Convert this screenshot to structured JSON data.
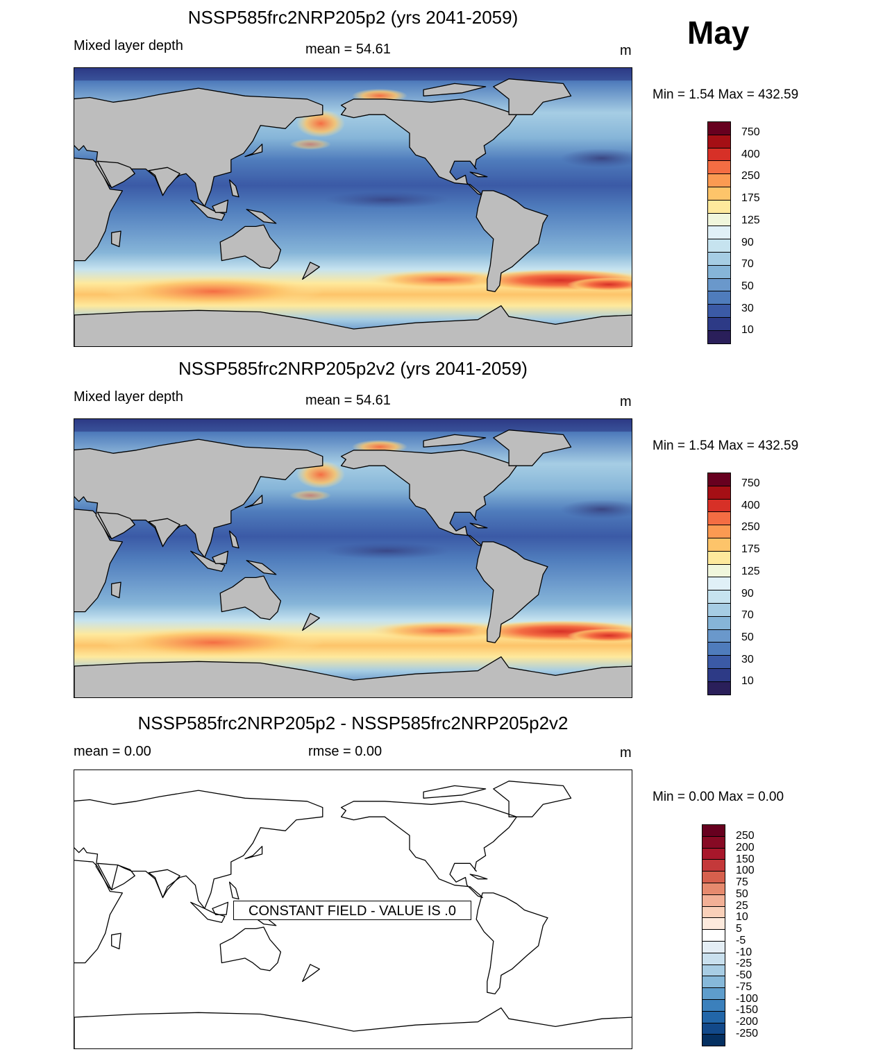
{
  "month": "May",
  "panels": [
    {
      "title": "NSSP585frc2NRP205p2 (yrs 2041-2059)",
      "left_label": "Mixed layer depth",
      "center_label": "mean =  54.61",
      "units": "m",
      "minmax": "Min =    1.54 Max = 432.59"
    },
    {
      "title": "NSSP585frc2NRP205p2v2 (yrs 2041-2059)",
      "left_label": "Mixed layer depth",
      "center_label": "mean =  54.61",
      "units": "m",
      "minmax": "Min =    1.54 Max = 432.59"
    },
    {
      "title": "NSSP585frc2NRP205p2 - NSSP585frc2NRP205p2v2",
      "left_label": "mean =   0.00",
      "center_label": "rmse =   0.00",
      "units": "m",
      "minmax": "Min =   0.00 Max =   0.00",
      "constant_field": "CONSTANT FIELD - VALUE IS .0"
    }
  ],
  "legend_mld": {
    "labels": [
      "750",
      "400",
      "250",
      "175",
      "125",
      "90",
      "70",
      "50",
      "30",
      "10"
    ],
    "colors": [
      "#67001f",
      "#a50f15",
      "#d73027",
      "#f46d43",
      "#fb9a52",
      "#fdc46a",
      "#fee99c",
      "#f0f6dc",
      "#e0f0f7",
      "#c6e3ef",
      "#a6cde4",
      "#86b5d8",
      "#6a98cb",
      "#4f7cbc",
      "#3b5aa6",
      "#2d3a86",
      "#2a1f5a"
    ]
  },
  "legend_diff": {
    "labels": [
      "250",
      "200",
      "150",
      "100",
      "75",
      "50",
      "25",
      "10",
      "5",
      "-5",
      "-10",
      "-25",
      "-50",
      "-75",
      "-100",
      "-150",
      "-200",
      "-250"
    ],
    "colors": [
      "#67001f",
      "#870a24",
      "#a8172b",
      "#c4393a",
      "#d6604d",
      "#e68a6e",
      "#f2b096",
      "#f9d0b9",
      "#fdeadd",
      "#ffffff",
      "#e4eef5",
      "#c9e0ee",
      "#a8cde4",
      "#86b8d9",
      "#5e9dcc",
      "#3b80bc",
      "#2266a8",
      "#12498a",
      "#053061"
    ]
  }
}
